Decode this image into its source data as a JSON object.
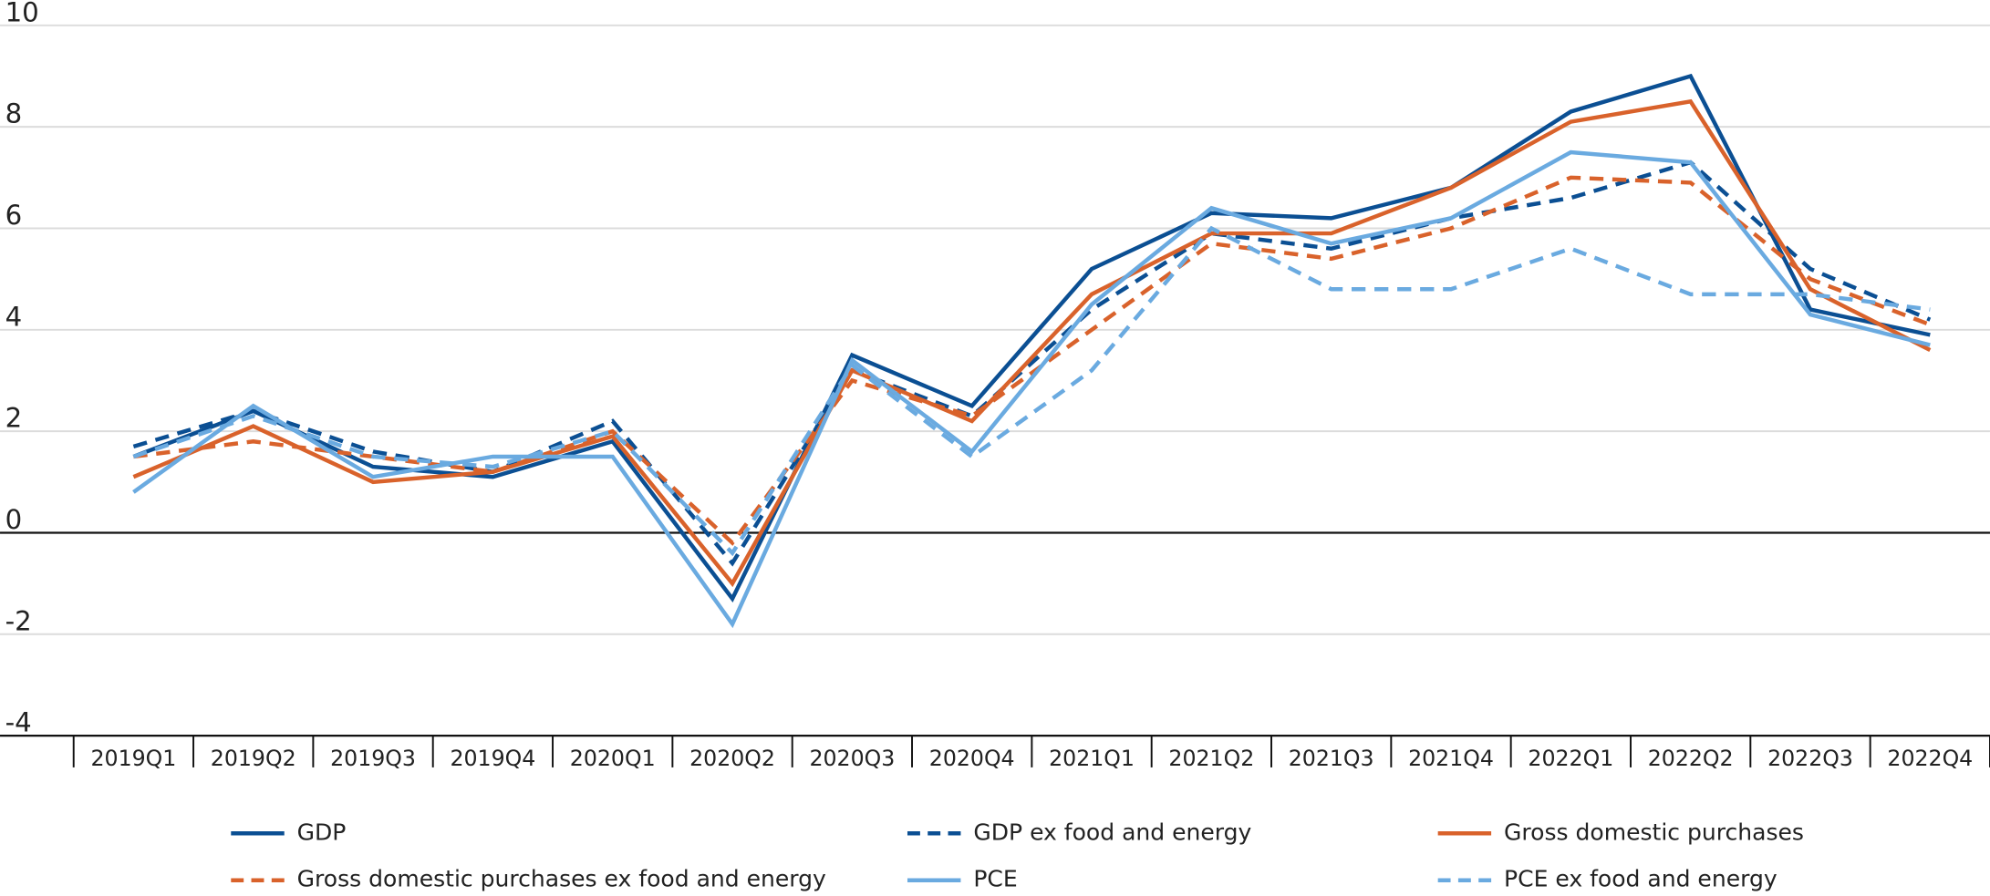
{
  "chart_data": {
    "type": "line",
    "categories": [
      "2019Q1",
      "2019Q2",
      "2019Q3",
      "2019Q4",
      "2020Q1",
      "2020Q2",
      "2020Q3",
      "2020Q4",
      "2021Q1",
      "2021Q2",
      "2021Q3",
      "2021Q4",
      "2022Q1",
      "2022Q2",
      "2022Q3",
      "2022Q4"
    ],
    "series": [
      {
        "name": "GDP",
        "color": "#0b4f93",
        "dashed": false,
        "values": [
          1.5,
          2.4,
          1.3,
          1.1,
          1.8,
          -1.3,
          3.5,
          2.5,
          5.2,
          6.3,
          6.2,
          6.8,
          8.3,
          9.0,
          4.4,
          3.9
        ]
      },
      {
        "name": "GDP ex food and energy",
        "color": "#0b4f93",
        "dashed": true,
        "values": [
          1.7,
          2.4,
          1.6,
          1.2,
          2.2,
          -0.6,
          3.2,
          2.3,
          4.4,
          5.9,
          5.6,
          6.2,
          6.6,
          7.3,
          5.2,
          4.2
        ]
      },
      {
        "name": "Gross domestic purchases",
        "color": "#d9622b",
        "dashed": false,
        "values": [
          1.1,
          2.1,
          1.0,
          1.2,
          1.9,
          -1.0,
          3.2,
          2.2,
          4.7,
          5.9,
          5.9,
          6.8,
          8.1,
          8.5,
          4.8,
          3.6
        ]
      },
      {
        "name": "Gross domestic purchases ex food and energy",
        "color": "#d9622b",
        "dashed": true,
        "values": [
          1.5,
          1.8,
          1.5,
          1.2,
          2.0,
          -0.2,
          3.0,
          2.3,
          4.0,
          5.7,
          5.4,
          6.0,
          7.0,
          6.9,
          5.0,
          4.1
        ]
      },
      {
        "name": "PCE",
        "color": "#6aaae0",
        "dashed": false,
        "values": [
          0.8,
          2.5,
          1.1,
          1.5,
          1.5,
          -1.8,
          3.4,
          1.6,
          4.5,
          6.4,
          5.7,
          6.2,
          7.5,
          7.3,
          4.3,
          3.7
        ]
      },
      {
        "name": "PCE ex food and energy",
        "color": "#6aaae0",
        "dashed": true,
        "values": [
          1.5,
          2.3,
          1.5,
          1.3,
          2.0,
          -0.4,
          3.3,
          1.5,
          3.2,
          6.0,
          4.8,
          4.8,
          5.6,
          4.7,
          4.7,
          4.4
        ]
      }
    ],
    "ylim": [
      -4,
      10
    ],
    "yticks": [
      -4,
      -2,
      0,
      2,
      4,
      6,
      8,
      10
    ],
    "grid": true
  }
}
